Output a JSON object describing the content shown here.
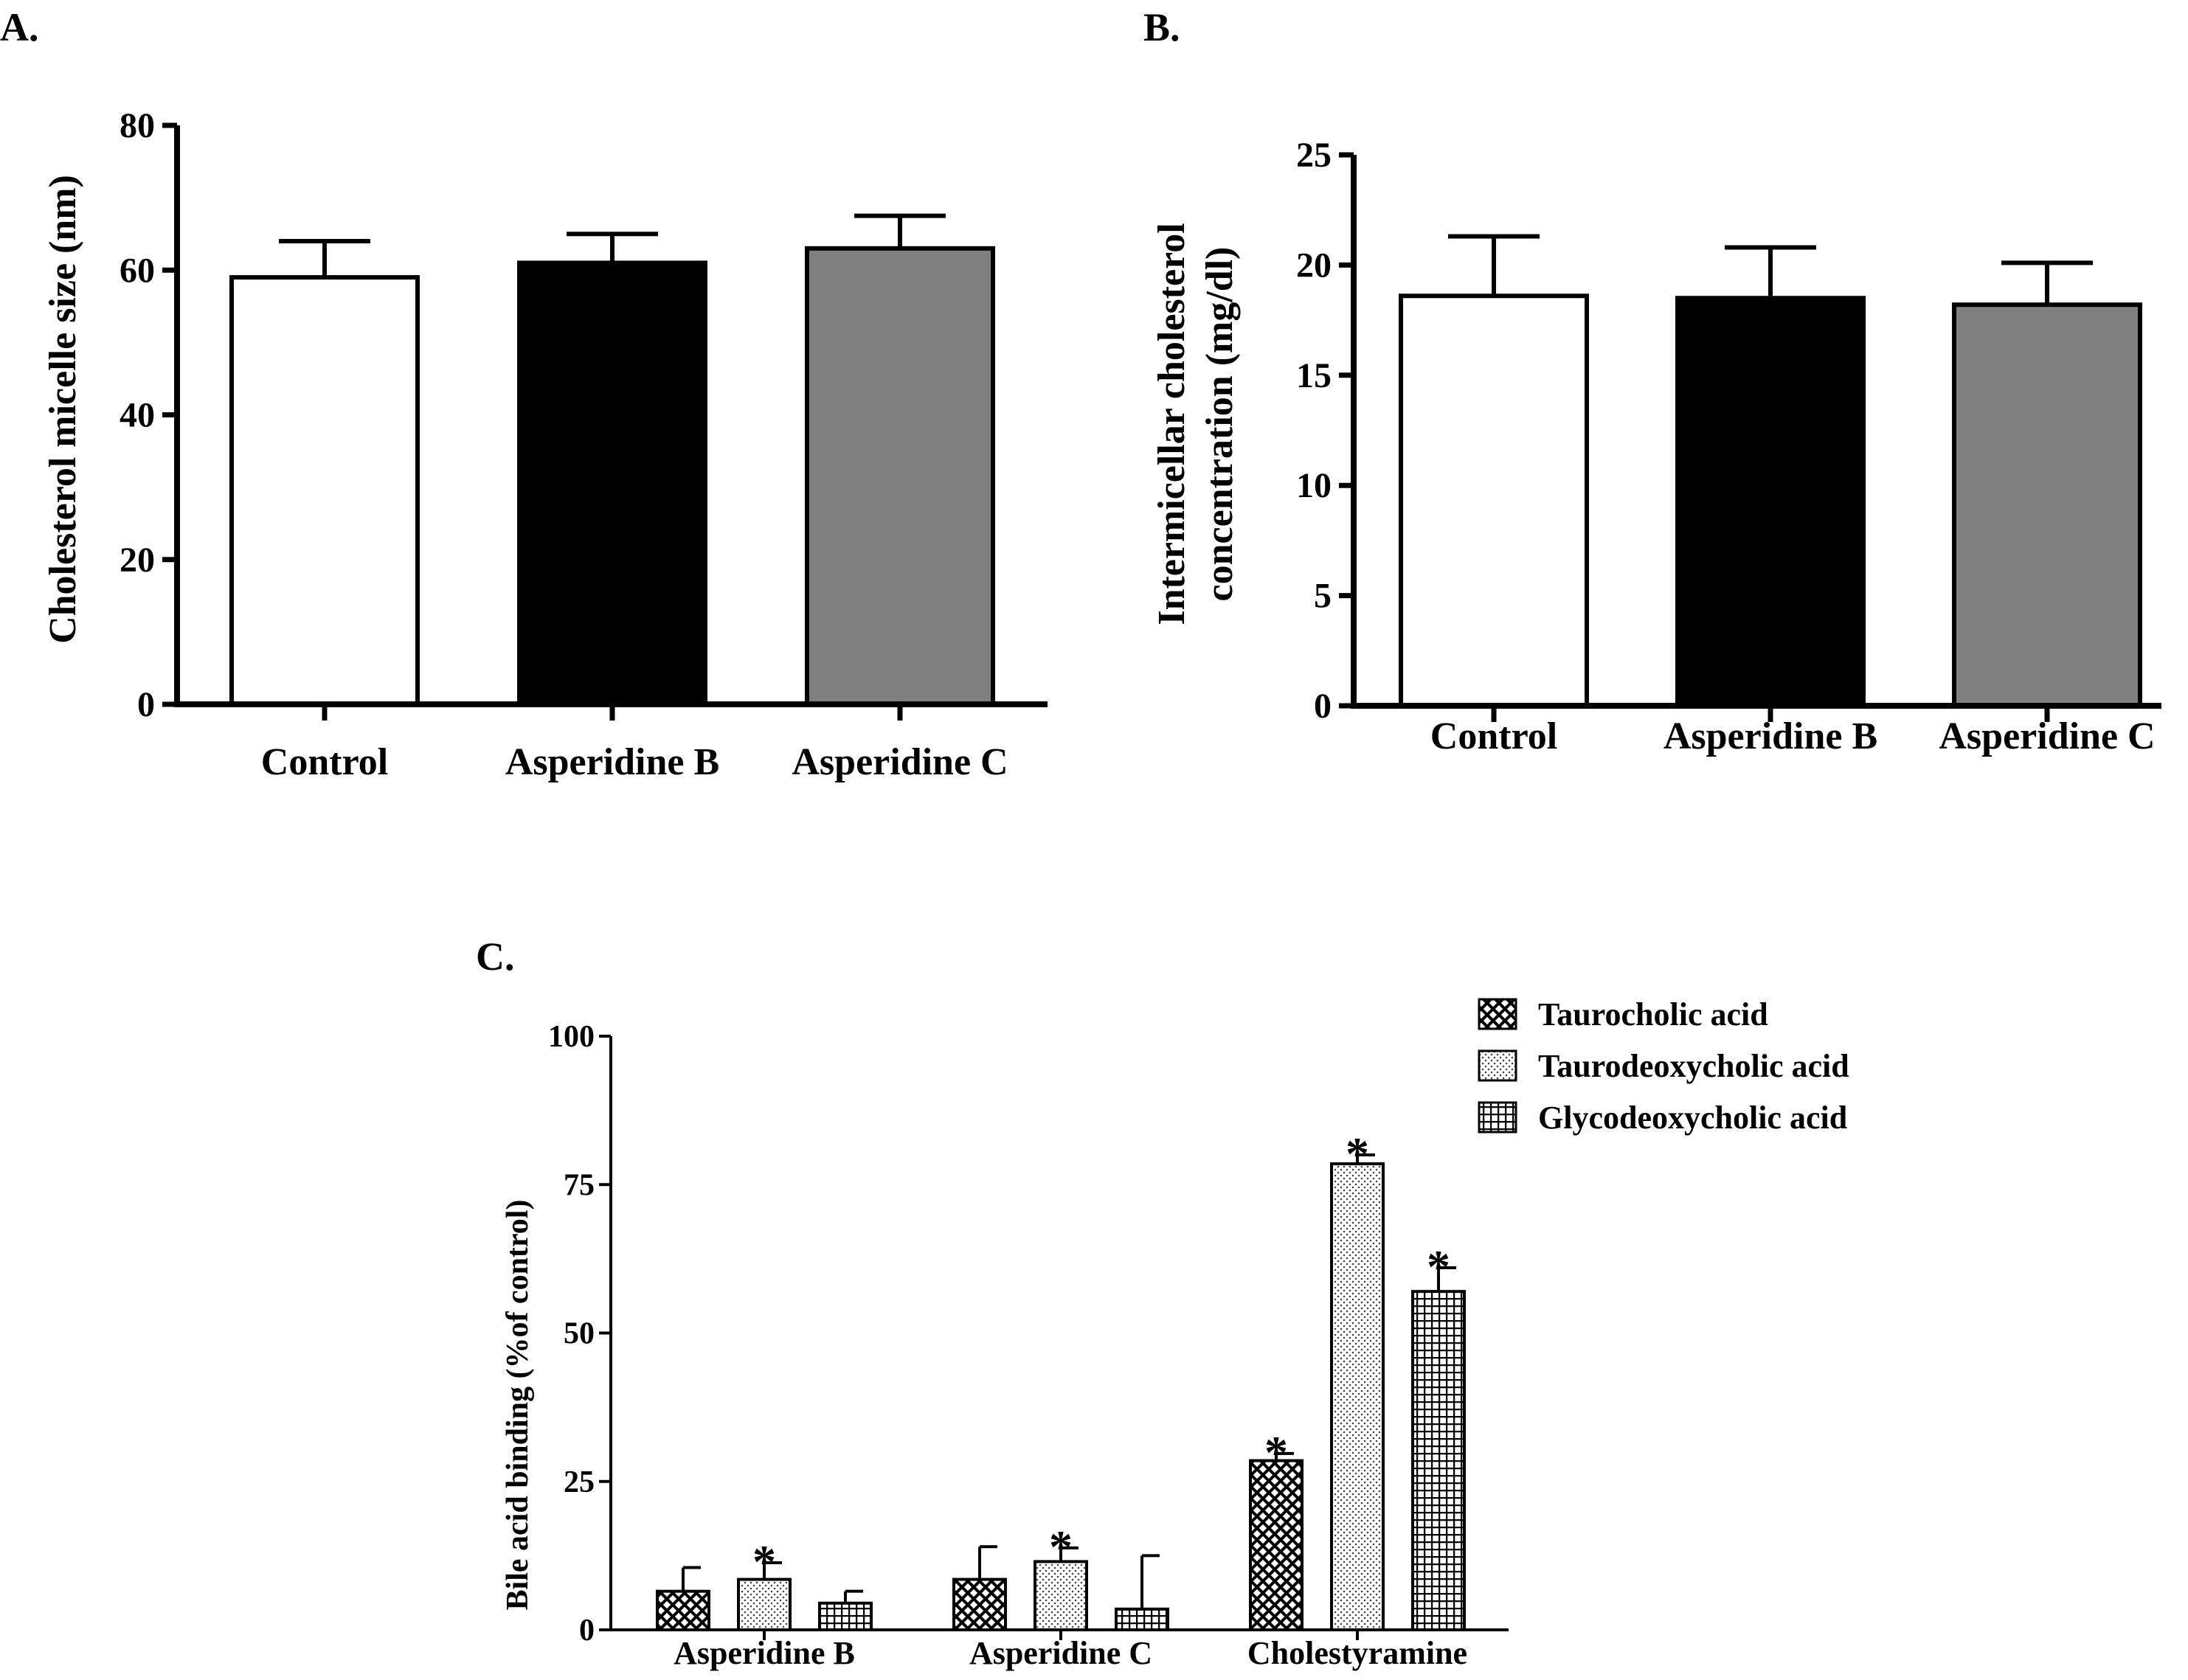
{
  "chart_data": [
    {
      "type": "bar",
      "panel_label": "A.",
      "categories": [
        "Control",
        "Asperidine B",
        "Asperidine C"
      ],
      "values": [
        59,
        61,
        63
      ],
      "errors": [
        5,
        4,
        4.5
      ],
      "fills": [
        "#ffffff",
        "#000000",
        "#808080"
      ],
      "ylabel": "Cholesterol micelle size (nm)",
      "ylim": [
        0,
        80
      ],
      "yticks": [
        "0",
        "20",
        "40",
        "60",
        "80"
      ]
    },
    {
      "type": "bar",
      "panel_label": "B.",
      "categories": [
        "Control",
        "Asperidine B",
        "Asperidine C"
      ],
      "values": [
        18.6,
        18.5,
        18.2
      ],
      "errors": [
        2.7,
        2.3,
        1.9
      ],
      "fills": [
        "#ffffff",
        "#000000",
        "#808080"
      ],
      "ylabel": [
        "Intermicellar cholesterol",
        "concentration (mg/dl)"
      ],
      "ylim": [
        0,
        25
      ],
      "yticks": [
        "0",
        "5",
        "10",
        "15",
        "20",
        "25"
      ]
    },
    {
      "type": "bar",
      "panel_label": "C.",
      "categories": [
        "Asperidine B",
        "Asperidine C",
        "Cholestyramine"
      ],
      "series": [
        {
          "name": "Taurocholic acid",
          "pattern": "crosshatch",
          "values": [
            6.5,
            8.5,
            28.5
          ],
          "errors": [
            4,
            5.5,
            1.2
          ],
          "significant": [
            false,
            false,
            true
          ]
        },
        {
          "name": "Taurodeoxycholic acid",
          "pattern": "dots",
          "values": [
            8.5,
            11.5,
            78.5
          ],
          "errors": [
            2.8,
            2.3,
            1.5
          ],
          "significant": [
            true,
            true,
            true
          ]
        },
        {
          "name": "Glycodeoxycholic acid",
          "pattern": "grid",
          "values": [
            4.5,
            3.5,
            57
          ],
          "errors": [
            2,
            9,
            4
          ],
          "significant": [
            false,
            false,
            true
          ]
        }
      ],
      "ylabel": "Bile acid binding (%of control)",
      "ylim": [
        0,
        100
      ],
      "yticks": [
        "0",
        "25",
        "50",
        "75",
        "100"
      ],
      "significance_marker": "*"
    }
  ]
}
